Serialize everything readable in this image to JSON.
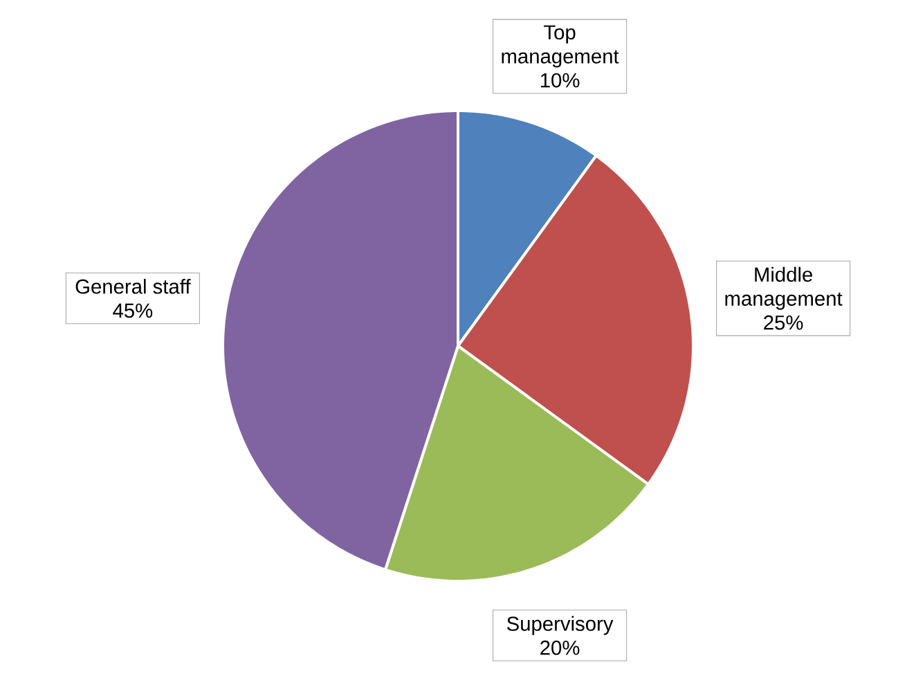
{
  "chart_data": {
    "type": "pie",
    "categories": [
      "Top management",
      "Middle management",
      "Supervisory",
      "General staff"
    ],
    "values": [
      10,
      25,
      20,
      45
    ],
    "colors": [
      "#4f81bd",
      "#c0504d",
      "#9bbb59",
      "#8064a2"
    ],
    "value_labels": [
      "10%",
      "25%",
      "20%",
      "45%"
    ]
  }
}
